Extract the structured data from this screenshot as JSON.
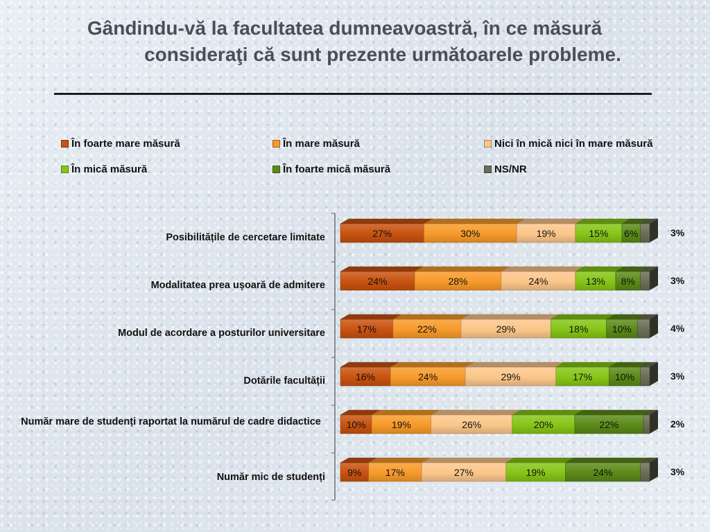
{
  "title": {
    "line1": "Gândindu-vă la facultatea dumneavoastră, în ce măsură",
    "line2": "consideraţi că sunt prezente următoarele probleme."
  },
  "chart_data": {
    "type": "bar",
    "orientation": "horizontal",
    "stacked": "percent",
    "categories": [
      "Posibilitățile de cercetare limitate",
      "Modalitatea prea ușoară de admitere",
      "Modul de acordare a posturilor universitare",
      "Dotările facultății",
      "Număr mare de studenți raportat la numărul de cadre didactice",
      "Număr mic de studenți"
    ],
    "series": [
      {
        "name": "În foarte mare măsură",
        "color": "#c8520f",
        "values": [
          27,
          24,
          17,
          16,
          10,
          9
        ]
      },
      {
        "name": "În mare măsură",
        "color": "#f79a2a",
        "values": [
          30,
          28,
          22,
          24,
          19,
          17
        ]
      },
      {
        "name": "Nici în mică nici în mare măsură",
        "color": "#fbc68a",
        "values": [
          19,
          24,
          29,
          29,
          26,
          27
        ]
      },
      {
        "name": "În mică măsură",
        "color": "#86c516",
        "values": [
          15,
          13,
          18,
          17,
          20,
          19
        ]
      },
      {
        "name": "În foarte mică măsură",
        "color": "#5b8a18",
        "values": [
          6,
          8,
          10,
          10,
          22,
          24
        ]
      },
      {
        "name": "NS/NR",
        "color": "#6b6d55",
        "values": [
          3,
          3,
          4,
          3,
          2,
          3
        ]
      }
    ],
    "value_suffix": "%",
    "legend": "top",
    "grid": false,
    "xlim": [
      0,
      100
    ]
  }
}
